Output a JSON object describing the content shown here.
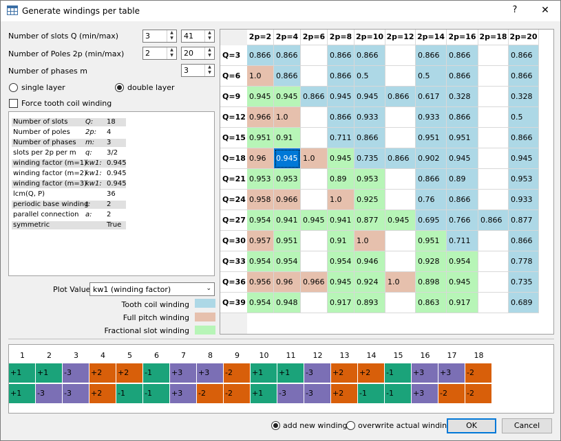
{
  "window": {
    "title": "Generate windings per table",
    "help": "?",
    "close": "✕"
  },
  "inputs": {
    "slots_label": "Number of slots Q (min/max)",
    "slots_min": "3",
    "slots_max": "41",
    "poles_label": "Number of Poles 2p (min/max)",
    "poles_min": "2",
    "poles_max": "20",
    "phases_label": "Number of phases m",
    "phases": "3"
  },
  "layer": {
    "single_label": "single layer",
    "double_label": "double layer",
    "selected": "double"
  },
  "force_tooth_coil_label": "Force tooth coil winding",
  "info": [
    {
      "k": "Number of slots",
      "s": "Q:",
      "v": "18"
    },
    {
      "k": "Number of poles",
      "s": "2p:",
      "v": "4"
    },
    {
      "k": "Number of phases",
      "s": "m:",
      "v": "3"
    },
    {
      "k": "slots per 2p per m",
      "s": "q:",
      "v": "3/2"
    },
    {
      "k": "winding factor (m=1)",
      "s": "kw1:",
      "v": "0.945"
    },
    {
      "k": "winding factor (m=2)",
      "s": "kw1:",
      "v": "0.945"
    },
    {
      "k": "winding factor (m=3)",
      "s": "kw1:",
      "v": "0.945"
    },
    {
      "k": "lcm(Q, P)",
      "s": "",
      "v": "36"
    },
    {
      "k": "periodic base winding",
      "s": "t:",
      "v": "2"
    },
    {
      "k": "parallel connection",
      "s": "a:",
      "v": "2"
    },
    {
      "k": "symmetric",
      "s": "",
      "v": "True"
    }
  ],
  "plot": {
    "label": "Plot Value",
    "value": "kw1 (winding factor)"
  },
  "legend": [
    {
      "label": "Tooth coil winding",
      "color": "#add8e6"
    },
    {
      "label": "Full pitch winding",
      "color": "#e6c0ad"
    },
    {
      "label": "Fractional slot winding",
      "color": "#b7f5b7"
    }
  ],
  "table": {
    "columns": [
      "2p=2",
      "2p=4",
      "2p=6",
      "2p=8",
      "2p=10",
      "2p=12",
      "2p=14",
      "2p=16",
      "2p=18",
      "2p=20"
    ],
    "selected": {
      "row": 5,
      "col": 1
    },
    "rows": [
      {
        "label": "Q=3",
        "cells": [
          [
            "0.866",
            "tooth"
          ],
          [
            "0.866",
            "tooth"
          ],
          [
            "",
            ""
          ],
          [
            "0.866",
            "tooth"
          ],
          [
            "0.866",
            "tooth"
          ],
          [
            "",
            ""
          ],
          [
            "0.866",
            "tooth"
          ],
          [
            "0.866",
            "tooth"
          ],
          [
            "",
            ""
          ],
          [
            "0.866",
            "tooth"
          ]
        ]
      },
      {
        "label": "Q=6",
        "cells": [
          [
            "1.0",
            "full"
          ],
          [
            "0.866",
            "tooth"
          ],
          [
            "",
            ""
          ],
          [
            "0.866",
            "tooth"
          ],
          [
            "0.5",
            "tooth"
          ],
          [
            "",
            ""
          ],
          [
            "0.5",
            "tooth"
          ],
          [
            "0.866",
            "tooth"
          ],
          [
            "",
            ""
          ],
          [
            "0.866",
            "tooth"
          ]
        ]
      },
      {
        "label": "Q=9",
        "cells": [
          [
            "0.945",
            "frac"
          ],
          [
            "0.945",
            "frac"
          ],
          [
            "0.866",
            "tooth"
          ],
          [
            "0.945",
            "tooth"
          ],
          [
            "0.945",
            "tooth"
          ],
          [
            "0.866",
            "tooth"
          ],
          [
            "0.617",
            "tooth"
          ],
          [
            "0.328",
            "tooth"
          ],
          [
            "",
            ""
          ],
          [
            "0.328",
            "tooth"
          ]
        ]
      },
      {
        "label": "Q=12",
        "cells": [
          [
            "0.966",
            "full"
          ],
          [
            "1.0",
            "full"
          ],
          [
            "",
            ""
          ],
          [
            "0.866",
            "tooth"
          ],
          [
            "0.933",
            "tooth"
          ],
          [
            "",
            ""
          ],
          [
            "0.933",
            "tooth"
          ],
          [
            "0.866",
            "tooth"
          ],
          [
            "",
            ""
          ],
          [
            "0.5",
            "tooth"
          ]
        ]
      },
      {
        "label": "Q=15",
        "cells": [
          [
            "0.951",
            "frac"
          ],
          [
            "0.91",
            "frac"
          ],
          [
            "",
            ""
          ],
          [
            "0.711",
            "tooth"
          ],
          [
            "0.866",
            "tooth"
          ],
          [
            "",
            ""
          ],
          [
            "0.951",
            "tooth"
          ],
          [
            "0.951",
            "tooth"
          ],
          [
            "",
            ""
          ],
          [
            "0.866",
            "tooth"
          ]
        ]
      },
      {
        "label": "Q=18",
        "cells": [
          [
            "0.96",
            "full"
          ],
          [
            "0.945",
            "frac"
          ],
          [
            "1.0",
            "full"
          ],
          [
            "0.945",
            "frac"
          ],
          [
            "0.735",
            "tooth"
          ],
          [
            "0.866",
            "tooth"
          ],
          [
            "0.902",
            "tooth"
          ],
          [
            "0.945",
            "tooth"
          ],
          [
            "",
            ""
          ],
          [
            "0.945",
            "tooth"
          ]
        ]
      },
      {
        "label": "Q=21",
        "cells": [
          [
            "0.953",
            "frac"
          ],
          [
            "0.953",
            "frac"
          ],
          [
            "",
            ""
          ],
          [
            "0.89",
            "frac"
          ],
          [
            "0.953",
            "frac"
          ],
          [
            "",
            ""
          ],
          [
            "0.866",
            "tooth"
          ],
          [
            "0.89",
            "tooth"
          ],
          [
            "",
            ""
          ],
          [
            "0.953",
            "tooth"
          ]
        ]
      },
      {
        "label": "Q=24",
        "cells": [
          [
            "0.958",
            "full"
          ],
          [
            "0.966",
            "full"
          ],
          [
            "",
            ""
          ],
          [
            "1.0",
            "full"
          ],
          [
            "0.925",
            "frac"
          ],
          [
            "",
            ""
          ],
          [
            "0.76",
            "tooth"
          ],
          [
            "0.866",
            "tooth"
          ],
          [
            "",
            ""
          ],
          [
            "0.933",
            "tooth"
          ]
        ]
      },
      {
        "label": "Q=27",
        "cells": [
          [
            "0.954",
            "frac"
          ],
          [
            "0.941",
            "frac"
          ],
          [
            "0.945",
            "frac"
          ],
          [
            "0.941",
            "frac"
          ],
          [
            "0.877",
            "frac"
          ],
          [
            "0.945",
            "frac"
          ],
          [
            "0.695",
            "tooth"
          ],
          [
            "0.766",
            "tooth"
          ],
          [
            "0.866",
            "tooth"
          ],
          [
            "0.877",
            "tooth"
          ]
        ]
      },
      {
        "label": "Q=30",
        "cells": [
          [
            "0.957",
            "full"
          ],
          [
            "0.951",
            "frac"
          ],
          [
            "",
            ""
          ],
          [
            "0.91",
            "frac"
          ],
          [
            "1.0",
            "full"
          ],
          [
            "",
            ""
          ],
          [
            "0.951",
            "frac"
          ],
          [
            "0.711",
            "tooth"
          ],
          [
            "",
            ""
          ],
          [
            "0.866",
            "tooth"
          ]
        ]
      },
      {
        "label": "Q=33",
        "cells": [
          [
            "0.954",
            "frac"
          ],
          [
            "0.954",
            "frac"
          ],
          [
            "",
            ""
          ],
          [
            "0.954",
            "frac"
          ],
          [
            "0.946",
            "frac"
          ],
          [
            "",
            ""
          ],
          [
            "0.928",
            "frac"
          ],
          [
            "0.954",
            "frac"
          ],
          [
            "",
            ""
          ],
          [
            "0.778",
            "tooth"
          ]
        ]
      },
      {
        "label": "Q=36",
        "cells": [
          [
            "0.956",
            "full"
          ],
          [
            "0.96",
            "full"
          ],
          [
            "0.966",
            "full"
          ],
          [
            "0.945",
            "frac"
          ],
          [
            "0.924",
            "frac"
          ],
          [
            "1.0",
            "full"
          ],
          [
            "0.898",
            "frac"
          ],
          [
            "0.945",
            "frac"
          ],
          [
            "",
            ""
          ],
          [
            "0.735",
            "tooth"
          ]
        ]
      },
      {
        "label": "Q=39",
        "cells": [
          [
            "0.954",
            "frac"
          ],
          [
            "0.948",
            "frac"
          ],
          [
            "",
            ""
          ],
          [
            "0.917",
            "frac"
          ],
          [
            "0.893",
            "frac"
          ],
          [
            "",
            ""
          ],
          [
            "0.863",
            "frac"
          ],
          [
            "0.917",
            "frac"
          ],
          [
            "",
            ""
          ],
          [
            "0.689",
            "tooth"
          ]
        ]
      }
    ]
  },
  "winding": {
    "slots": [
      "1",
      "2",
      "3",
      "4",
      "5",
      "6",
      "7",
      "8",
      "9",
      "10",
      "11",
      "12",
      "13",
      "14",
      "15",
      "16",
      "17",
      "18"
    ],
    "layers": [
      [
        [
          "+1",
          "green"
        ],
        [
          "+1",
          "green"
        ],
        [
          "-3",
          "purple"
        ],
        [
          "+2",
          "orange"
        ],
        [
          "+2",
          "orange"
        ],
        [
          "-1",
          "green"
        ],
        [
          "+3",
          "purple"
        ],
        [
          "+3",
          "purple"
        ],
        [
          "-2",
          "orange"
        ],
        [
          "+1",
          "green"
        ],
        [
          "+1",
          "green"
        ],
        [
          "-3",
          "purple"
        ],
        [
          "+2",
          "orange"
        ],
        [
          "+2",
          "orange"
        ],
        [
          "-1",
          "green"
        ],
        [
          "+3",
          "purple"
        ],
        [
          "+3",
          "purple"
        ],
        [
          "-2",
          "orange"
        ]
      ],
      [
        [
          "+1",
          "green"
        ],
        [
          "-3",
          "purple"
        ],
        [
          "-3",
          "purple"
        ],
        [
          "+2",
          "orange"
        ],
        [
          "-1",
          "green"
        ],
        [
          "-1",
          "green"
        ],
        [
          "+3",
          "purple"
        ],
        [
          "-2",
          "orange"
        ],
        [
          "-2",
          "orange"
        ],
        [
          "+1",
          "green"
        ],
        [
          "-3",
          "purple"
        ],
        [
          "-3",
          "purple"
        ],
        [
          "+2",
          "orange"
        ],
        [
          "-1",
          "green"
        ],
        [
          "-1",
          "green"
        ],
        [
          "+3",
          "purple"
        ],
        [
          "-2",
          "orange"
        ],
        [
          "-2",
          "orange"
        ]
      ]
    ]
  },
  "footer": {
    "add_new_label": "add new winding",
    "overwrite_label": "overwrite actual winding",
    "mode": "add",
    "ok_label": "OK",
    "cancel_label": "Cancel"
  }
}
